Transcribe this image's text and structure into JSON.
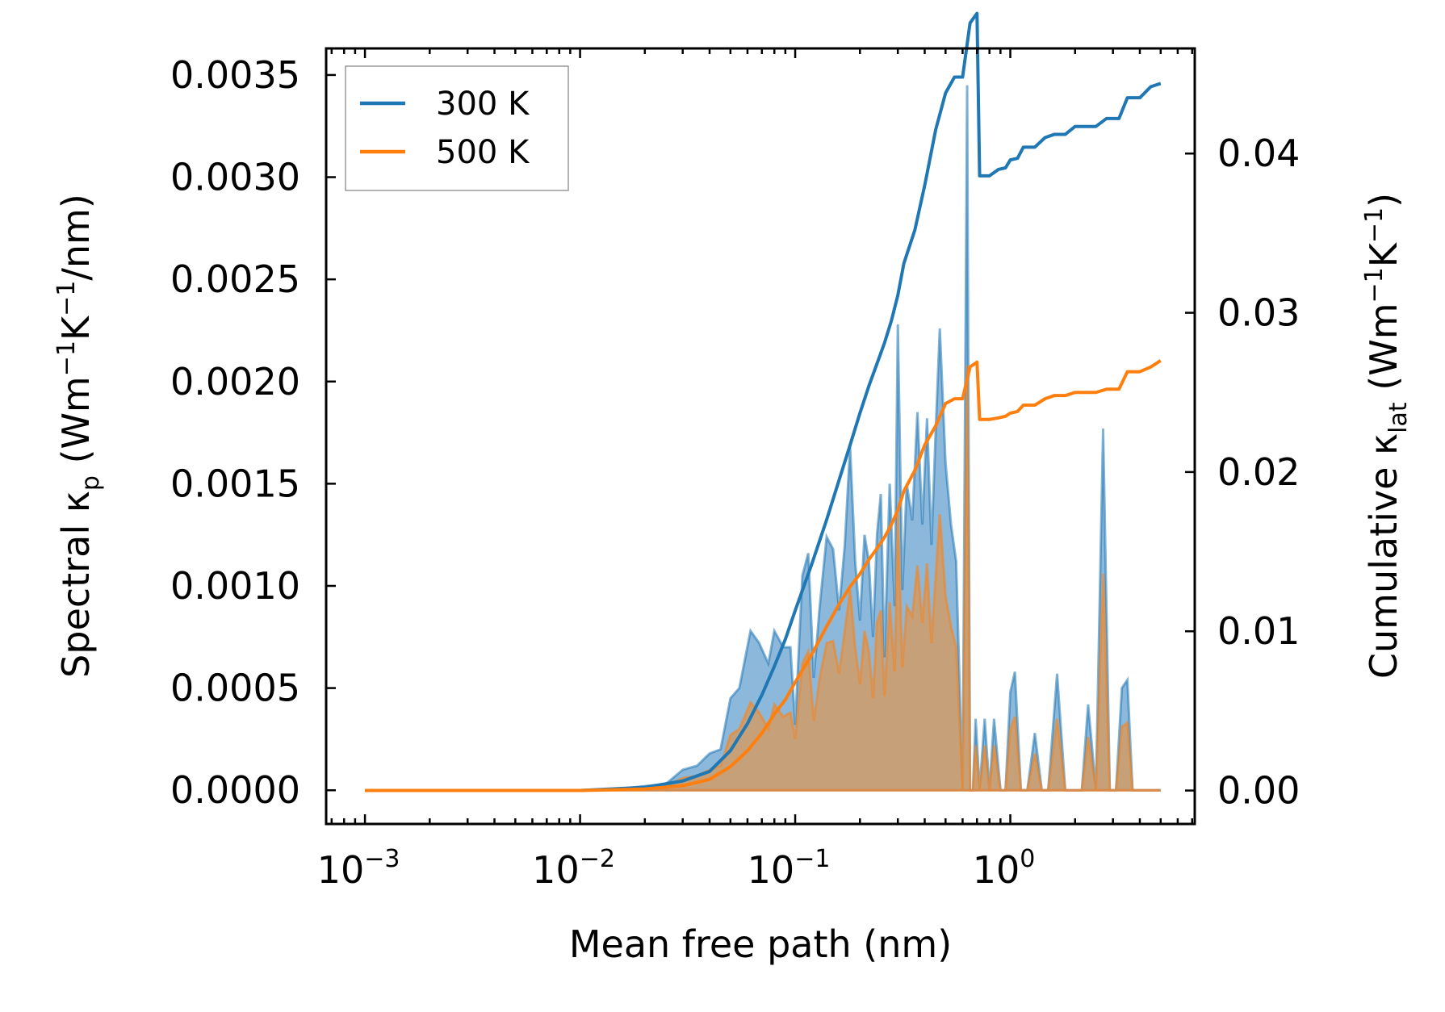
{
  "chart_data": {
    "type": "line",
    "x_scale": "log",
    "xlabel": "Mean free path (nm)",
    "xlim": [
      0.00066,
      7.2
    ],
    "x_ticks": [
      {
        "value": 0.001,
        "base": "10",
        "exp": "−3"
      },
      {
        "value": 0.01,
        "base": "10",
        "exp": "−2"
      },
      {
        "value": 0.1,
        "base": "10",
        "exp": "−1"
      },
      {
        "value": 1,
        "base": "10",
        "exp": "0"
      }
    ],
    "ylabel_left": {
      "pre": "Spectral κ",
      "sub": "p",
      "mid1": " (Wm",
      "sup1": "−1",
      "mid2": "K",
      "sup2": "−1",
      "post": "/nm)"
    },
    "ylim_left": [
      -0.000165,
      0.00363
    ],
    "y_ticks_left": [
      {
        "value": 0,
        "label": "0.0000"
      },
      {
        "value": 0.0005,
        "label": "0.0005"
      },
      {
        "value": 0.001,
        "label": "0.0010"
      },
      {
        "value": 0.0015,
        "label": "0.0015"
      },
      {
        "value": 0.002,
        "label": "0.0020"
      },
      {
        "value": 0.0025,
        "label": "0.0025"
      },
      {
        "value": 0.003,
        "label": "0.0030"
      },
      {
        "value": 0.0035,
        "label": "0.0035"
      }
    ],
    "ylabel_right": {
      "pre": "Cumulative κ",
      "sub": "lat",
      "mid1": " (Wm",
      "sup1": "−1",
      "mid2": "K",
      "sup2": "−1",
      "post": ")"
    },
    "ylim_right": [
      -0.0021,
      0.0466
    ],
    "y_ticks_right": [
      {
        "value": 0,
        "label": "0.00"
      },
      {
        "value": 0.01,
        "label": "0.01"
      },
      {
        "value": 0.02,
        "label": "0.02"
      },
      {
        "value": 0.03,
        "label": "0.03"
      },
      {
        "value": 0.04,
        "label": "0.04"
      }
    ],
    "legend_position": "top-left",
    "colors": {
      "300 K": "#1f77b4",
      "500 K": "#ff7f0e",
      "fill_300": "#7fb0d8",
      "fill_500": "#c89e73"
    },
    "spectral_x": [
      0.001,
      0.01,
      0.013,
      0.016,
      0.02,
      0.025,
      0.03,
      0.035,
      0.04,
      0.045,
      0.05,
      0.055,
      0.062,
      0.068,
      0.075,
      0.08,
      0.088,
      0.095,
      0.1,
      0.108,
      0.115,
      0.122,
      0.13,
      0.14,
      0.15,
      0.16,
      0.17,
      0.18,
      0.19,
      0.2,
      0.21,
      0.22,
      0.23,
      0.24,
      0.25,
      0.26,
      0.275,
      0.29,
      0.3,
      0.315,
      0.33,
      0.35,
      0.37,
      0.39,
      0.41,
      0.43,
      0.45,
      0.47,
      0.5,
      0.53,
      0.56,
      0.6,
      0.63,
      0.65,
      0.67,
      0.69,
      0.72,
      0.76,
      0.8,
      0.84,
      0.9,
      0.95,
      1.0,
      1.05,
      1.12,
      1.2,
      1.3,
      1.4,
      1.5,
      1.65,
      1.8,
      2.0,
      2.15,
      2.3,
      2.5,
      2.7,
      2.9,
      3.1,
      3.3,
      3.5,
      3.7,
      3.9,
      4.2,
      4.6,
      5.0
    ],
    "series": [
      {
        "name": "300 K",
        "spectral": [
          0,
          0,
          5e-06,
          1e-05,
          2e-05,
          3e-05,
          0.0001,
          0.00012,
          0.00018,
          0.0002,
          0.00045,
          0.0005,
          0.00078,
          0.00072,
          0.00062,
          0.00078,
          0.0007,
          0.0007,
          0.00032,
          0.00105,
          0.00116,
          0.00055,
          0.0009,
          0.00124,
          0.00118,
          0.00088,
          0.0012,
          0.00168,
          0.00112,
          0.00083,
          0.00125,
          0.00112,
          0.00075,
          0.00125,
          0.00145,
          0.00065,
          0.0015,
          0.0009,
          0.00228,
          0.00098,
          0.0015,
          0.00132,
          0.00185,
          0.0013,
          0.00182,
          0.0012,
          0.00176,
          0.00226,
          0.0016,
          0.0013,
          0.00112,
          0,
          0.00345,
          0,
          0,
          0.00035,
          0,
          0.00035,
          0,
          0.00035,
          0,
          0,
          0.00048,
          0.00058,
          0,
          0,
          0.00028,
          0,
          0,
          0.00057,
          0,
          0,
          0,
          0.00042,
          0,
          0.00177,
          0,
          0,
          0.0005,
          0.00054,
          0,
          0,
          0,
          0,
          0
        ],
        "cumulative_x": [
          0.001,
          0.01,
          0.02,
          0.03,
          0.04,
          0.05,
          0.06,
          0.07,
          0.08,
          0.09,
          0.1,
          0.12,
          0.14,
          0.16,
          0.18,
          0.2,
          0.22,
          0.24,
          0.26,
          0.28,
          0.3,
          0.32,
          0.36,
          0.4,
          0.45,
          0.5,
          0.55,
          0.6,
          0.65,
          0.7,
          0.72,
          0.8,
          0.88,
          0.95,
          1.0,
          1.08,
          1.15,
          1.3,
          1.45,
          1.6,
          1.8,
          2.0,
          2.2,
          2.5,
          2.8,
          3.2,
          3.5,
          4.0,
          4.5,
          5.0
        ],
        "cumulative": [
          0,
          0,
          0.0002,
          0.0006,
          0.0012,
          0.0025,
          0.0042,
          0.006,
          0.0078,
          0.0095,
          0.0113,
          0.0143,
          0.017,
          0.0195,
          0.0217,
          0.0237,
          0.0254,
          0.0268,
          0.0281,
          0.0295,
          0.0311,
          0.0331,
          0.0352,
          0.038,
          0.0415,
          0.0438,
          0.0448,
          0.0448,
          0.0482,
          0.0488,
          0.0386,
          0.0386,
          0.039,
          0.0391,
          0.0396,
          0.0397,
          0.0404,
          0.0404,
          0.041,
          0.0412,
          0.0412,
          0.0417,
          0.0417,
          0.0417,
          0.0422,
          0.0422,
          0.0435,
          0.0435,
          0.0442,
          0.0444
        ]
      },
      {
        "name": "500 K",
        "spectral": [
          0,
          0,
          3e-06,
          6e-06,
          1e-05,
          2e-05,
          6e-05,
          7e-05,
          0.0001,
          0.00012,
          0.00027,
          0.0003,
          0.00043,
          0.00038,
          0.0003,
          0.00042,
          0.00036,
          0.00038,
          0.00025,
          0.00062,
          0.00068,
          0.00034,
          0.00055,
          0.00072,
          0.00073,
          0.00057,
          0.00078,
          0.00098,
          0.0007,
          0.00052,
          0.00078,
          0.00068,
          0.00045,
          0.00082,
          0.00088,
          0.00046,
          0.00092,
          0.00058,
          0.00135,
          0.0006,
          0.0009,
          0.00085,
          0.0011,
          0.00082,
          0.00111,
          0.00072,
          0.00105,
          0.00135,
          0.00095,
          0.0008,
          0.0007,
          0,
          0.00208,
          0,
          0,
          0.00022,
          0,
          0.00022,
          0,
          0.00022,
          0,
          0,
          0.0003,
          0.00036,
          0,
          0,
          0.00018,
          0,
          0,
          0.00035,
          0,
          0,
          0,
          0.00026,
          0,
          0.00106,
          0,
          0,
          0.00031,
          0.00033,
          0,
          0,
          0,
          0,
          0
        ],
        "cumulative_x": [
          0.001,
          0.01,
          0.02,
          0.03,
          0.04,
          0.05,
          0.06,
          0.07,
          0.08,
          0.09,
          0.1,
          0.12,
          0.14,
          0.16,
          0.18,
          0.2,
          0.22,
          0.24,
          0.26,
          0.28,
          0.3,
          0.32,
          0.36,
          0.4,
          0.45,
          0.5,
          0.55,
          0.6,
          0.65,
          0.7,
          0.72,
          0.8,
          0.88,
          0.95,
          1.0,
          1.08,
          1.15,
          1.3,
          1.45,
          1.6,
          1.8,
          2.0,
          2.2,
          2.5,
          2.8,
          3.2,
          3.5,
          4.0,
          4.5,
          5.0
        ],
        "cumulative": [
          0,
          0,
          0.0001,
          0.0003,
          0.0007,
          0.0015,
          0.0025,
          0.0036,
          0.0048,
          0.0057,
          0.0068,
          0.0086,
          0.0103,
          0.0117,
          0.0128,
          0.0136,
          0.0145,
          0.0152,
          0.0159,
          0.0167,
          0.0176,
          0.0188,
          0.0201,
          0.0217,
          0.0229,
          0.0243,
          0.0246,
          0.0246,
          0.0266,
          0.0269,
          0.0233,
          0.0233,
          0.0234,
          0.0235,
          0.0237,
          0.0238,
          0.0242,
          0.0242,
          0.0246,
          0.0248,
          0.0248,
          0.025,
          0.025,
          0.025,
          0.0252,
          0.0252,
          0.0263,
          0.0263,
          0.0266,
          0.027
        ]
      }
    ]
  }
}
